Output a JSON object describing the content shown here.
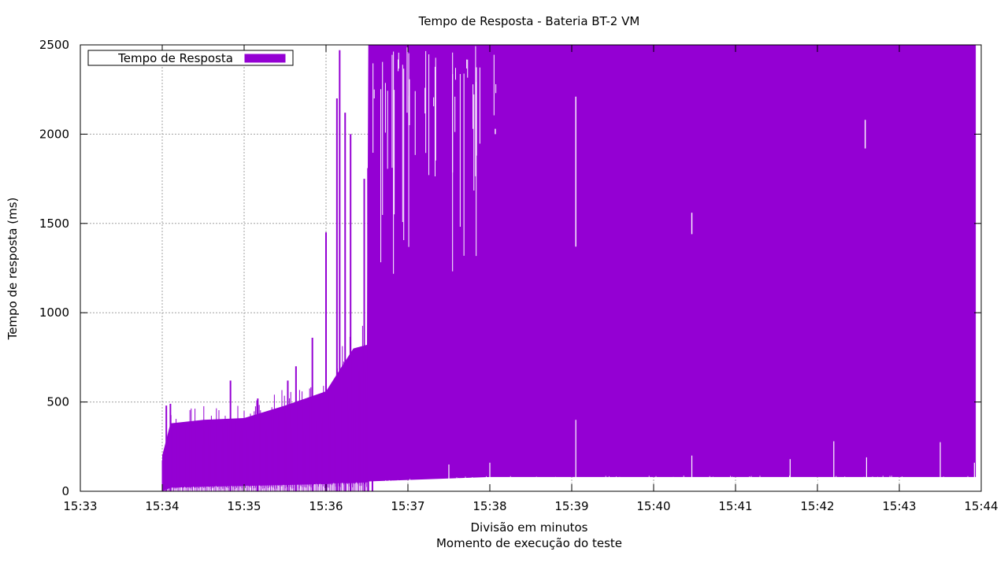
{
  "chart_data": {
    "type": "bar",
    "title": "Tempo de Resposta - Bateria BT-2 VM",
    "xlabel": "Divisão em minutos",
    "xlabel2": "Momento de execução do teste",
    "ylabel": "Tempo de resposta (ms)",
    "x_range": [
      "15:33",
      "15:44"
    ],
    "xticks": [
      "15:33",
      "15:34",
      "15:35",
      "15:36",
      "15:37",
      "15:38",
      "15:39",
      "15:40",
      "15:41",
      "15:42",
      "15:43",
      "15:44"
    ],
    "ylim": [
      0,
      2500
    ],
    "yticks": [
      0,
      500,
      1000,
      1500,
      2000,
      2500
    ],
    "grid": true,
    "legend_position": "top-left",
    "series": [
      {
        "name": "Tempo de Resposta",
        "color": "#9400d3",
        "envelope": [
          {
            "t": "15:34:00",
            "upper": 200,
            "lower": 0
          },
          {
            "t": "15:34:06",
            "upper": 380,
            "lower": 20
          },
          {
            "t": "15:34:30",
            "upper": 400,
            "lower": 25
          },
          {
            "t": "15:35:00",
            "upper": 410,
            "lower": 30
          },
          {
            "t": "15:35:30",
            "upper": 480,
            "lower": 35
          },
          {
            "t": "15:36:00",
            "upper": 560,
            "lower": 40
          },
          {
            "t": "15:36:10",
            "upper": 680,
            "lower": 45
          },
          {
            "t": "15:36:20",
            "upper": 800,
            "lower": 45
          },
          {
            "t": "15:36:30",
            "upper": 820,
            "lower": 50
          },
          {
            "t": "15:36:31",
            "upper": 2500,
            "lower": 55
          },
          {
            "t": "15:38:00",
            "upper": 2500,
            "lower": 80
          },
          {
            "t": "15:43:56",
            "upper": 2500,
            "lower": 80
          }
        ]
      }
    ],
    "spikes": [
      {
        "t": "15:34:03",
        "value": 480
      },
      {
        "t": "15:34:06",
        "value": 490
      },
      {
        "t": "15:34:50",
        "value": 620
      },
      {
        "t": "15:35:10",
        "value": 520
      },
      {
        "t": "15:35:32",
        "value": 620
      },
      {
        "t": "15:35:38",
        "value": 700
      },
      {
        "t": "15:35:50",
        "value": 860
      },
      {
        "t": "15:36:00",
        "value": 1450
      },
      {
        "t": "15:36:08",
        "value": 2200
      },
      {
        "t": "15:36:10",
        "value": 2470
      },
      {
        "t": "15:36:14",
        "value": 2120
      },
      {
        "t": "15:36:18",
        "value": 2000
      },
      {
        "t": "15:36:28",
        "value": 1750
      },
      {
        "t": "15:36:31",
        "value": 1760
      },
      {
        "t": "15:36:34",
        "value": 2250
      }
    ],
    "gaps": [
      {
        "t": "15:39:03",
        "from": 1370,
        "to": 2210
      },
      {
        "t": "15:40:28",
        "from": 1440,
        "to": 1560
      },
      {
        "t": "15:42:35",
        "from": 1920,
        "to": 2080
      },
      {
        "t": "15:38:04",
        "from": 2000,
        "to": 2030
      }
    ],
    "low_spikes": [
      {
        "t": "15:37:30",
        "value": 150
      },
      {
        "t": "15:38:00",
        "value": 160
      },
      {
        "t": "15:39:03",
        "value": 400
      },
      {
        "t": "15:40:28",
        "value": 200
      },
      {
        "t": "15:41:40",
        "value": 180
      },
      {
        "t": "15:42:12",
        "value": 280
      },
      {
        "t": "15:42:36",
        "value": 190
      },
      {
        "t": "15:43:30",
        "value": 275
      },
      {
        "t": "15:43:55",
        "value": 160
      }
    ]
  }
}
